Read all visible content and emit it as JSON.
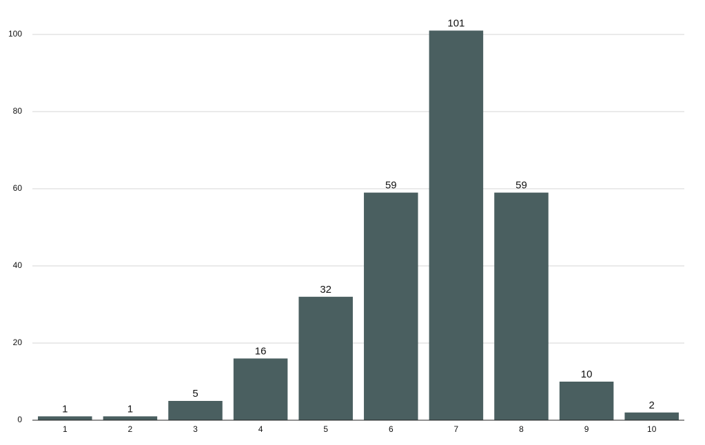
{
  "chart_data": {
    "type": "bar",
    "categories": [
      "1",
      "2",
      "3",
      "4",
      "5",
      "6",
      "7",
      "8",
      "9",
      "10"
    ],
    "values": [
      1,
      1,
      5,
      16,
      32,
      59,
      101,
      59,
      10,
      2
    ],
    "color": "#4a5f60",
    "ylim": [
      0,
      105
    ],
    "yticks": [
      0,
      20,
      40,
      60,
      80,
      100
    ],
    "grid": true
  }
}
